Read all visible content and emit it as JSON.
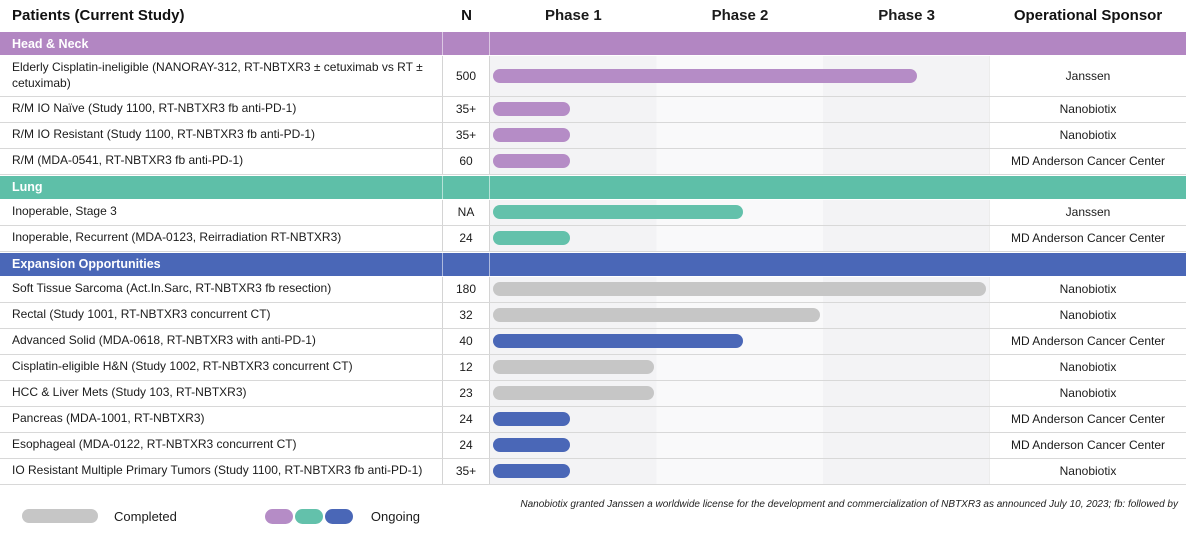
{
  "header": {
    "columns": [
      "Patients (Current Study)",
      "N",
      "Phase 1",
      "Phase 2",
      "Phase 3",
      "Operational Sponsor"
    ]
  },
  "legend": {
    "completed_label": "Completed",
    "ongoing_label": "Ongoing",
    "completed_color": "#c6c6c6",
    "ongoing_colors": [
      "#b58cc6",
      "#63c1ab",
      "#4a67b7"
    ]
  },
  "footnote": "Nanobiotix granted Janssen a worldwide license for the development and commercialization of NBTXR3 as announced July 10, 2023; fb: followed by",
  "sections": [
    {
      "label": "Head & Neck",
      "color": "#b286c2",
      "rows": [
        {
          "patients": "Elderly Cisplatin-ineligible (NANORAY-312, RT-NBTXR3 ± cetuximab vs RT ± cetuximab)",
          "n": "500",
          "bar_pct": 85,
          "bar_color": "#b58cc6",
          "status": "ongoing",
          "sponsor": "Janssen"
        },
        {
          "patients": "R/M IO Naïve (Study 1100, RT-NBTXR3 fb anti-PD-1)",
          "n": "35+",
          "bar_pct": 15.4,
          "bar_color": "#b58cc6",
          "status": "ongoing",
          "sponsor": "Nanobiotix"
        },
        {
          "patients": "R/M IO Resistant (Study 1100, RT-NBTXR3 fb anti-PD-1)",
          "n": "35+",
          "bar_pct": 15.4,
          "bar_color": "#b58cc6",
          "status": "ongoing",
          "sponsor": "Nanobiotix"
        },
        {
          "patients": "R/M (MDA-0541, RT-NBTXR3 fb anti-PD-1)",
          "n": "60",
          "bar_pct": 15.4,
          "bar_color": "#b58cc6",
          "status": "ongoing",
          "sponsor": "MD Anderson Cancer Center"
        }
      ]
    },
    {
      "label": "Lung",
      "color": "#5ebfa8",
      "rows": [
        {
          "patients": "Inoperable, Stage 3",
          "n": "NA",
          "bar_pct": 50,
          "bar_color": "#63c1ab",
          "status": "ongoing",
          "sponsor": "Janssen"
        },
        {
          "patients": "Inoperable, Recurrent (MDA-0123, Reirradiation RT-NBTXR3)",
          "n": "24",
          "bar_pct": 15.4,
          "bar_color": "#63c1ab",
          "status": "ongoing",
          "sponsor": "MD Anderson Cancer Center"
        }
      ]
    },
    {
      "label": "Expansion Opportunities",
      "color": "#4a67b7",
      "rows": [
        {
          "patients": "Soft Tissue Sarcoma (Act.In.Sarc, RT-NBTXR3 fb resection)",
          "n": "180",
          "bar_pct": 98.8,
          "bar_color": "#c6c6c6",
          "status": "completed",
          "sponsor": "Nanobiotix"
        },
        {
          "patients": "Rectal (Study 1001, RT-NBTXR3 concurrent CT)",
          "n": "32",
          "bar_pct": 65.6,
          "bar_color": "#c6c6c6",
          "status": "completed",
          "sponsor": "Nanobiotix"
        },
        {
          "patients": "Advanced Solid (MDA-0618, RT-NBTXR3 with anti-PD-1)",
          "n": "40",
          "bar_pct": 50,
          "bar_color": "#4a67b7",
          "status": "ongoing",
          "sponsor": "MD Anderson Cancer Center"
        },
        {
          "patients": "Cisplatin-eligible H&N (Study 1002, RT-NBTXR3 concurrent CT)",
          "n": "12",
          "bar_pct": 32.2,
          "bar_color": "#c6c6c6",
          "status": "completed",
          "sponsor": "Nanobiotix"
        },
        {
          "patients": "HCC & Liver Mets (Study 103, RT-NBTXR3)",
          "n": "23",
          "bar_pct": 32.2,
          "bar_color": "#c6c6c6",
          "status": "completed",
          "sponsor": "Nanobiotix"
        },
        {
          "patients": "Pancreas (MDA-1001, RT-NBTXR3)",
          "n": "24",
          "bar_pct": 15.4,
          "bar_color": "#4a67b7",
          "status": "ongoing",
          "sponsor": "MD Anderson Cancer Center"
        },
        {
          "patients": "Esophageal (MDA-0122, RT-NBTXR3 concurrent CT)",
          "n": "24",
          "bar_pct": 15.4,
          "bar_color": "#4a67b7",
          "status": "ongoing",
          "sponsor": "MD Anderson Cancer Center"
        },
        {
          "patients": "IO Resistant Multiple Primary Tumors (Study 1100, RT-NBTXR3 fb anti-PD-1)",
          "n": "35+",
          "bar_pct": 15.4,
          "bar_color": "#4a67b7",
          "status": "ongoing",
          "sponsor": "Nanobiotix"
        }
      ]
    }
  ],
  "chart_data": {
    "type": "bar",
    "title": "Clinical pipeline: studies by phase (gantt-style horizontal bars)",
    "x_axis_phases": [
      "Phase 1",
      "Phase 2",
      "Phase 3"
    ],
    "x_range_phases": [
      0,
      3
    ],
    "legend": {
      "completed": "#c6c6c6",
      "ongoing": [
        "#b58cc6",
        "#63c1ab",
        "#4a67b7"
      ]
    },
    "bars": [
      {
        "label": "Elderly Cisplatin-ineligible (NANORAY-312, RT-NBTXR3 ± cetuximab vs RT ± cetuximab)",
        "group": "Head & Neck",
        "n": "500",
        "phases_reached": 2.55,
        "status": "ongoing",
        "sponsor": "Janssen"
      },
      {
        "label": "R/M IO Naïve (Study 1100, RT-NBTXR3 fb anti-PD-1)",
        "group": "Head & Neck",
        "n": "35+",
        "phases_reached": 0.46,
        "status": "ongoing",
        "sponsor": "Nanobiotix"
      },
      {
        "label": "R/M IO Resistant (Study 1100, RT-NBTXR3 fb anti-PD-1)",
        "group": "Head & Neck",
        "n": "35+",
        "phases_reached": 0.46,
        "status": "ongoing",
        "sponsor": "Nanobiotix"
      },
      {
        "label": "R/M (MDA-0541, RT-NBTXR3 fb anti-PD-1)",
        "group": "Head & Neck",
        "n": "60",
        "phases_reached": 0.46,
        "status": "ongoing",
        "sponsor": "MD Anderson Cancer Center"
      },
      {
        "label": "Inoperable, Stage 3",
        "group": "Lung",
        "n": "NA",
        "phases_reached": 1.5,
        "status": "ongoing",
        "sponsor": "Janssen"
      },
      {
        "label": "Inoperable, Recurrent (MDA-0123, Reirradiation RT-NBTXR3)",
        "group": "Lung",
        "n": "24",
        "phases_reached": 0.46,
        "status": "ongoing",
        "sponsor": "MD Anderson Cancer Center"
      },
      {
        "label": "Soft Tissue Sarcoma (Act.In.Sarc, RT-NBTXR3 fb resection)",
        "group": "Expansion Opportunities",
        "n": "180",
        "phases_reached": 2.96,
        "status": "completed",
        "sponsor": "Nanobiotix"
      },
      {
        "label": "Rectal (Study 1001, RT-NBTXR3 concurrent CT)",
        "group": "Expansion Opportunities",
        "n": "32",
        "phases_reached": 1.97,
        "status": "completed",
        "sponsor": "Nanobiotix"
      },
      {
        "label": "Advanced Solid (MDA-0618, RT-NBTXR3 with anti-PD-1)",
        "group": "Expansion Opportunities",
        "n": "40",
        "phases_reached": 1.5,
        "status": "ongoing",
        "sponsor": "MD Anderson Cancer Center"
      },
      {
        "label": "Cisplatin-eligible H&N (Study 1002, RT-NBTXR3 concurrent CT)",
        "group": "Expansion Opportunities",
        "n": "12",
        "phases_reached": 0.97,
        "status": "completed",
        "sponsor": "Nanobiotix"
      },
      {
        "label": "HCC & Liver Mets (Study 103, RT-NBTXR3)",
        "group": "Expansion Opportunities",
        "n": "23",
        "phases_reached": 0.97,
        "status": "completed",
        "sponsor": "Nanobiotix"
      },
      {
        "label": "Pancreas (MDA-1001, RT-NBTXR3)",
        "group": "Expansion Opportunities",
        "n": "24",
        "phases_reached": 0.46,
        "status": "ongoing",
        "sponsor": "MD Anderson Cancer Center"
      },
      {
        "label": "Esophageal (MDA-0122, RT-NBTXR3 concurrent CT)",
        "group": "Expansion Opportunities",
        "n": "24",
        "phases_reached": 0.46,
        "status": "ongoing",
        "sponsor": "MD Anderson Cancer Center"
      },
      {
        "label": "IO Resistant Multiple Primary Tumors (Study 1100, RT-NBTXR3 fb anti-PD-1)",
        "group": "Expansion Opportunities",
        "n": "35+",
        "phases_reached": 0.46,
        "status": "ongoing",
        "sponsor": "Nanobiotix"
      }
    ]
  }
}
